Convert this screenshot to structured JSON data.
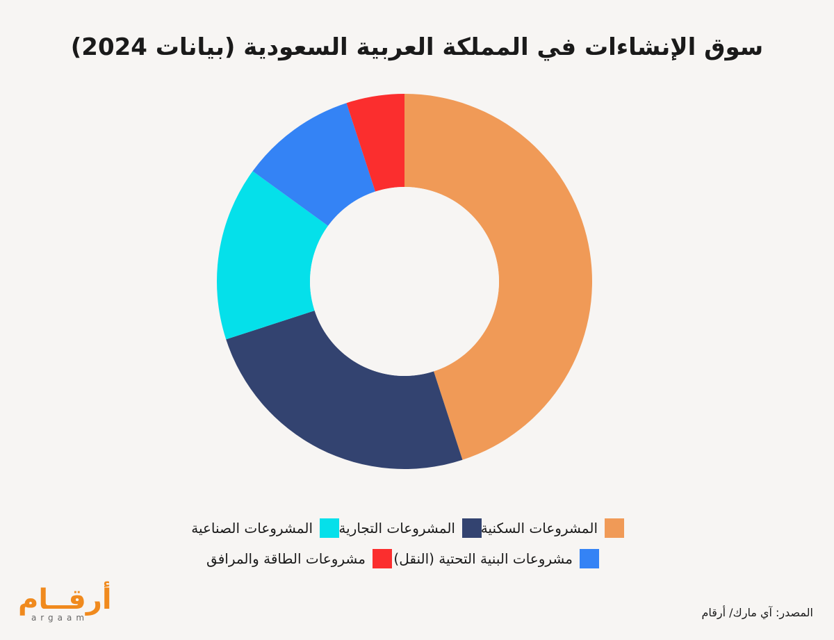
{
  "chart_data": {
    "type": "pie",
    "title": "سوق الإنشاءات في المملكة العربية السعودية (بيانات 2024)",
    "donut": true,
    "series": [
      {
        "name": "المشروعات السكنية",
        "value": 45,
        "color": "#f09a57"
      },
      {
        "name": "المشروعات التجارية",
        "value": 25,
        "color": "#334370"
      },
      {
        "name": "المشروعات الصناعية",
        "value": 15,
        "color": "#05e0ea"
      },
      {
        "name": "مشروعات البنية التحتية (النقل)",
        "value": 10,
        "color": "#3483f5"
      },
      {
        "name": "مشروعات الطاقة والمرافق",
        "value": 5,
        "color": "#fb2e2e"
      }
    ],
    "legend_placement": "bottom"
  },
  "footer": {
    "source": "المصدر: آي مارك/ أرقام",
    "logo_ar": "أرقــام",
    "logo_en": "argaam"
  }
}
